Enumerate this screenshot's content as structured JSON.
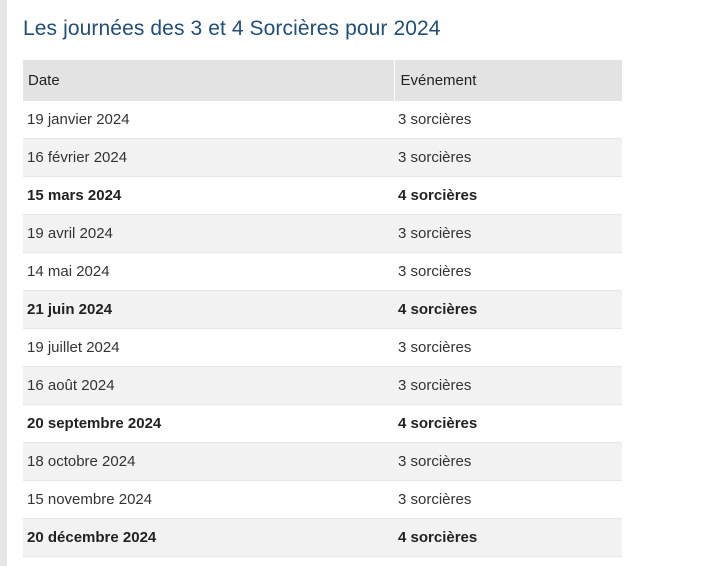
{
  "title": "Les journées des 3 et 4 Sorcières pour 2024",
  "table": {
    "headers": [
      "Date",
      "Evénement"
    ],
    "rows": [
      {
        "date": "19 janvier 2024",
        "event": "3 sorcières",
        "highlight": false
      },
      {
        "date": "16 février 2024",
        "event": "3 sorcières",
        "highlight": false
      },
      {
        "date": "15 mars 2024",
        "event": "4 sorcières",
        "highlight": true
      },
      {
        "date": "19 avril 2024",
        "event": "3 sorcières",
        "highlight": false
      },
      {
        "date": "14 mai 2024",
        "event": "3 sorcières",
        "highlight": false
      },
      {
        "date": "21 juin 2024",
        "event": "4 sorcières",
        "highlight": true
      },
      {
        "date": "19 juillet 2024",
        "event": "3 sorcières",
        "highlight": false
      },
      {
        "date": "16 août 2024",
        "event": "3 sorcières",
        "highlight": false
      },
      {
        "date": "20 septembre 2024",
        "event": "4 sorcières",
        "highlight": true
      },
      {
        "date": "18 octobre 2024",
        "event": "3 sorcières",
        "highlight": false
      },
      {
        "date": "15 novembre 2024",
        "event": "3 sorcières",
        "highlight": false
      },
      {
        "date": "20 décembre 2024",
        "event": "4 sorcières",
        "highlight": true
      }
    ]
  },
  "colors": {
    "title": "#1f4e79",
    "header_bg": "#e3e3e3",
    "row_alt_bg": "#f2f2f2"
  }
}
